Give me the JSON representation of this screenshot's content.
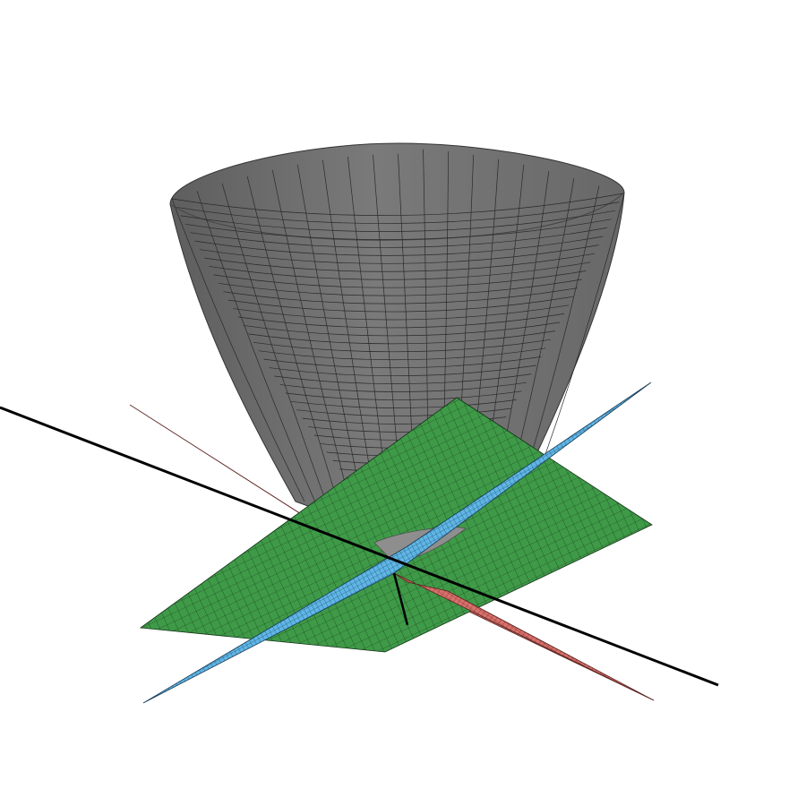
{
  "scene": {
    "background": "#ffffff",
    "surfaces": [
      {
        "name": "paraboloid",
        "color": "#6e6e6e",
        "mesh_color": "#2a2a2a",
        "opacity": 0.9
      },
      {
        "name": "plane-red",
        "color": "#d9706b",
        "mesh_color": "#4a1a18"
      },
      {
        "name": "plane-blue",
        "color": "#5fb6e6",
        "mesh_color": "#10324a"
      },
      {
        "name": "plane-green",
        "color": "#3f9a48",
        "mesh_color": "#0f2c12"
      }
    ],
    "line": {
      "name": "axis-line",
      "color": "#000000"
    }
  }
}
